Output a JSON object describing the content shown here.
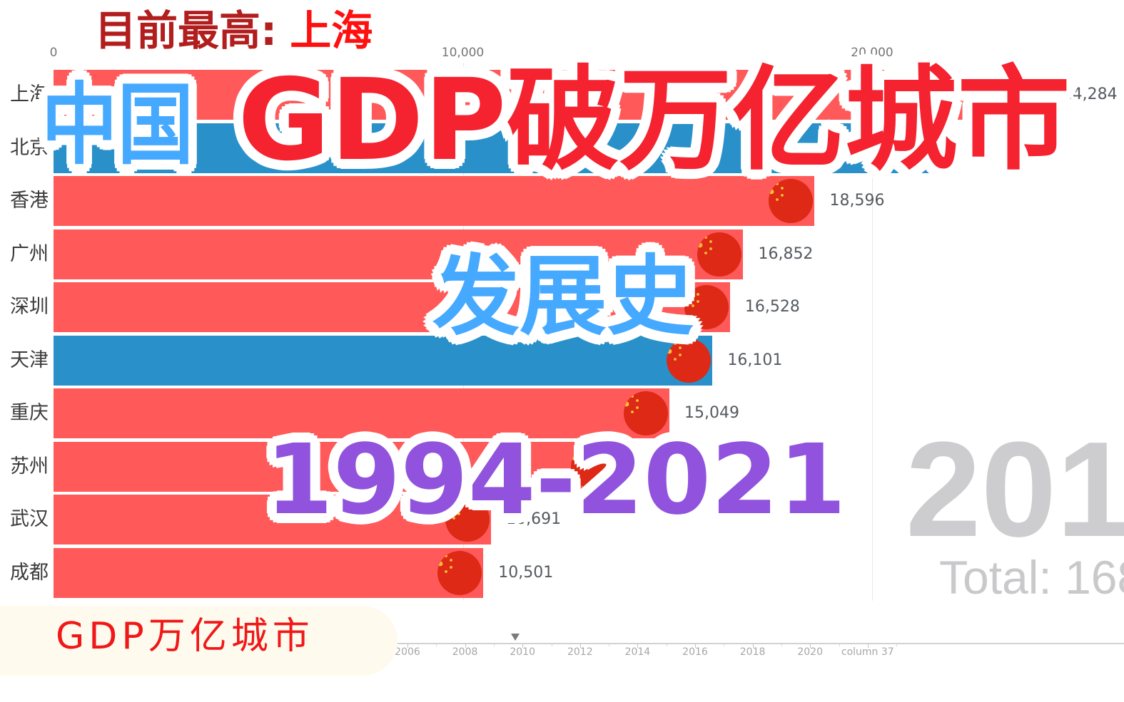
{
  "header": {
    "prefix": "目前最高:",
    "leader": "上海"
  },
  "title": {
    "left": "中国",
    "main": "GDP破万亿城市",
    "sub": "发展史",
    "years": "1994-2021"
  },
  "badge": {
    "text": "GDP万亿城市"
  },
  "chart": {
    "axis_ticks": [
      "0",
      "10,000",
      "20,000"
    ],
    "axis_tick_values": [
      0,
      10000,
      20000
    ],
    "year_label": "201",
    "total_label": "Total: 168",
    "flag_icon": "china-flag-circle-icon",
    "timeline_ticks": [
      "2006",
      "2008",
      "2010",
      "2012",
      "2014",
      "2016",
      "2018",
      "2020",
      "column 37"
    ]
  },
  "colors": {
    "bar_red": "#FF5959",
    "bar_blue": "#2990CA",
    "flag_red": "#DD2915",
    "flag_star": "#F6C431",
    "title_red": "#F5222F",
    "title_blue": "#45A9FF",
    "title_purple": "#9153DE",
    "header_dark_red": "#B21D1D",
    "header_red": "#FF1010",
    "badge_bg": "#FEFBEE",
    "badge_text": "#F01818",
    "year_gray": "#CDCDCF"
  },
  "chart_data": {
    "type": "bar",
    "orientation": "horizontal",
    "title": "中国 GDP破万亿城市 发展史 1994-2021",
    "subtitle": "目前最高: 上海",
    "xlabel": "",
    "ylabel": "",
    "xticks": [
      0,
      10000,
      20000
    ],
    "xtick_labels": [
      "0",
      "10,000",
      "20,000"
    ],
    "xlim": [
      0,
      26000
    ],
    "grid": true,
    "legend": null,
    "categories": [
      "上海",
      "北京",
      "香港",
      "广州",
      "深圳",
      "天津",
      "重庆",
      "苏州",
      "武汉",
      "成都"
    ],
    "values": [
      24284,
      21900,
      18596,
      16852,
      16528,
      16101,
      15049,
      13760,
      10691,
      10501
    ],
    "value_labels": [
      "24,284",
      null,
      "18,596",
      "16,852",
      "16,528",
      "16,101",
      "15,049",
      null,
      "10,691",
      "10,501"
    ],
    "value_estimated": [
      false,
      true,
      false,
      false,
      false,
      false,
      false,
      true,
      true,
      false
    ],
    "bar_colors": [
      "bar_red",
      "bar_blue",
      "bar_red",
      "bar_red",
      "bar_red",
      "bar_blue",
      "bar_red",
      "bar_red",
      "bar_red",
      "bar_red"
    ],
    "current_year_display": "201",
    "total_display": "Total: 168",
    "timeline_labels": [
      "2006",
      "2008",
      "2010",
      "2012",
      "2014",
      "2016",
      "2018",
      "2020",
      "column 37"
    ]
  }
}
